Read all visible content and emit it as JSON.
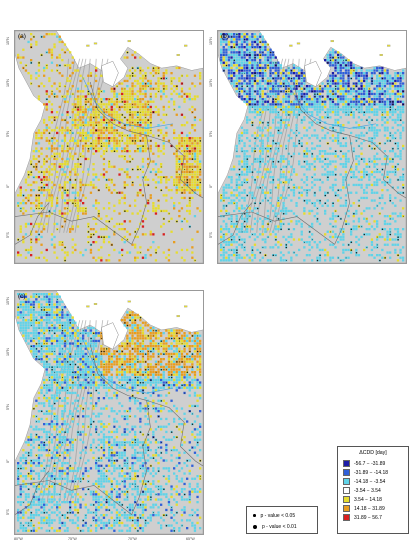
{
  "panels": [
    {
      "label": "(a)",
      "scheme": "wet"
    },
    {
      "label": "(b)",
      "scheme": "cool"
    },
    {
      "label": "(c)",
      "scheme": "mixed"
    }
  ],
  "lat_ticks": [
    "15°N",
    "10°N",
    "5°N",
    "0°",
    "5°S"
  ],
  "lon_ticks": [
    "80°W",
    "75°W",
    "70°W",
    "65°W"
  ],
  "legend": {
    "title": "ΔCDD [day]",
    "items": [
      {
        "label": "-56.7 − -31.89",
        "color": "#1c1ca8"
      },
      {
        "label": "-31.89 − -14.18",
        "color": "#2f5fd9"
      },
      {
        "label": "-14.18 − -3.54",
        "color": "#5fd3e8"
      },
      {
        "label": "-3.54 − 3.54",
        "color": "#ffffff"
      },
      {
        "label": "3.54 − 14.18",
        "color": "#e6dc2e"
      },
      {
        "label": "14.18 − 31.89",
        "color": "#e89d1f"
      },
      {
        "label": "31.89 − 56.7",
        "color": "#d81f1f"
      }
    ]
  },
  "significance": [
    {
      "label": "p - value < 0.05",
      "symbol": "small-dot"
    },
    {
      "label": "p - value < 0.01",
      "symbol": "large-dot"
    }
  ]
}
